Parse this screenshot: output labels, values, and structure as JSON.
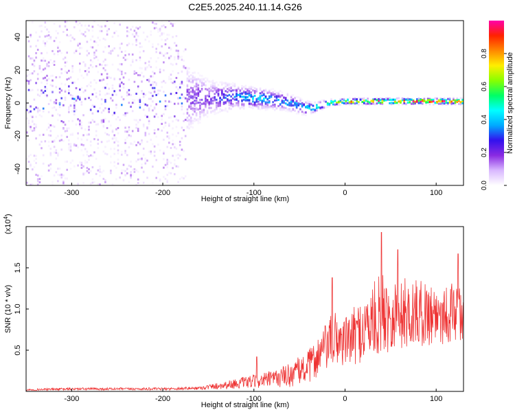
{
  "title": "C2E5.2025.240.11.14.G26",
  "colors": {
    "axis": "#000000",
    "snr_line": "#ee3333",
    "colormap_stops": [
      "#ffffff",
      "#d9b8ff",
      "#8a2be2",
      "#3311ee",
      "#00aaff",
      "#00ffff",
      "#00ff66",
      "#88ff00",
      "#ffee00",
      "#ff8800",
      "#ff2200",
      "#ff00aa"
    ]
  },
  "chart_data": [
    {
      "type": "heatmap",
      "name": "spectrogram",
      "xlabel": "Height of straight line (km)",
      "ylabel": "Frequency (Hz)",
      "xlim": [
        -350,
        130
      ],
      "ylim": [
        -50,
        50
      ],
      "xticks": [
        -300,
        -200,
        -100,
        0,
        100
      ],
      "xtick_labels": [
        "-300",
        "-200",
        "-100",
        "0",
        "100"
      ],
      "yticks": [
        -40,
        -20,
        0,
        20,
        40
      ],
      "ytick_labels": [
        "-40",
        "-20",
        "0",
        "20",
        "40"
      ],
      "colorbar": {
        "label": "Normalized spectral amplitude",
        "range": [
          0,
          1
        ],
        "ticks": [
          0.0,
          0.2,
          0.4,
          0.6,
          0.8
        ],
        "tick_labels": [
          "0.0",
          "0.2",
          "0.4",
          "0.6",
          "0.8"
        ]
      },
      "ridge": {
        "x": [
          -350,
          -300,
          -250,
          -200,
          -150,
          -120,
          -100,
          -80,
          -60,
          -45,
          -35,
          -20,
          0,
          20,
          50,
          80,
          100,
          130
        ],
        "frequency": [
          1,
          2,
          2,
          3,
          3,
          4,
          3,
          2,
          0,
          -3,
          -3,
          0,
          1,
          1,
          1,
          1,
          1,
          1
        ],
        "amplitude": [
          0.12,
          0.13,
          0.13,
          0.14,
          0.22,
          0.32,
          0.38,
          0.36,
          0.34,
          0.36,
          0.5,
          0.6,
          0.7,
          0.75,
          0.8,
          0.85,
          0.88,
          0.92
        ],
        "spread": [
          50,
          50,
          50,
          45,
          15,
          10,
          9,
          8,
          7,
          6,
          4,
          3,
          2,
          2,
          2,
          2,
          2,
          2
        ]
      }
    },
    {
      "type": "line",
      "name": "snr",
      "xlabel": "Height of straight line (km)",
      "ylabel": "SNR (10 * v/v)",
      "yunit_label": "(x10",
      "yunit_exponent": "4",
      "yunit_close": ")",
      "xlim": [
        -350,
        130
      ],
      "ylim": [
        0,
        2.0
      ],
      "xticks": [
        -300,
        -200,
        -100,
        0,
        100
      ],
      "xtick_labels": [
        "-300",
        "-200",
        "-100",
        "0",
        "100"
      ],
      "yticks": [
        0.5,
        1.0,
        1.5
      ],
      "ytick_labels": [
        "0.5",
        "1.0",
        "1.5"
      ],
      "series": [
        {
          "name": "SNR",
          "envelope_x": [
            -350,
            -300,
            -250,
            -200,
            -160,
            -130,
            -100,
            -80,
            -60,
            -40,
            -20,
            -10,
            0,
            20,
            40,
            60,
            80,
            100,
            130
          ],
          "envelope_mean": [
            0.02,
            0.03,
            0.03,
            0.03,
            0.04,
            0.08,
            0.12,
            0.15,
            0.2,
            0.3,
            0.55,
            0.65,
            0.6,
            0.75,
            0.95,
            0.95,
            0.95,
            0.95,
            0.95
          ],
          "envelope_amplitude": [
            0.01,
            0.015,
            0.015,
            0.015,
            0.02,
            0.05,
            0.08,
            0.1,
            0.15,
            0.2,
            0.3,
            0.35,
            0.3,
            0.4,
            0.5,
            0.45,
            0.4,
            0.4,
            0.35
          ],
          "peaks": [
            {
              "x": 40,
              "y": 1.93
            },
            {
              "x": 58,
              "y": 1.72
            },
            {
              "x": 124,
              "y": 1.67
            },
            {
              "x": -14,
              "y": 1.38
            },
            {
              "x": -97,
              "y": 0.42
            }
          ]
        }
      ]
    }
  ]
}
